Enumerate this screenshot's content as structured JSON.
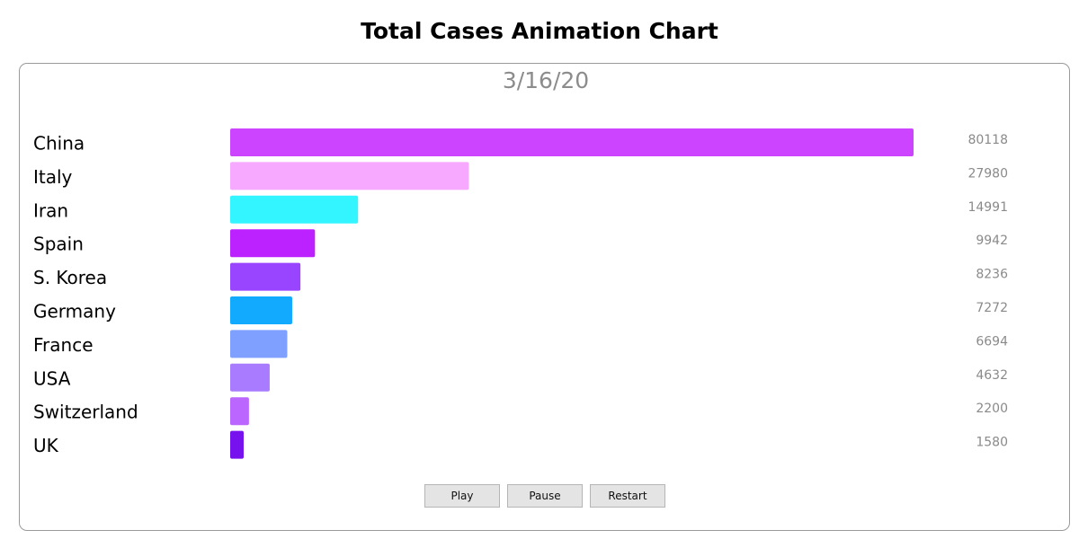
{
  "page": {
    "title": "Total Cases Animation Chart"
  },
  "chart_data": {
    "type": "bar",
    "orientation": "horizontal",
    "date": "3/16/20",
    "categories": [
      "China",
      "Italy",
      "Iran",
      "Spain",
      "S. Korea",
      "Germany",
      "France",
      "USA",
      "Switzerland",
      "UK"
    ],
    "values": [
      80118,
      27980,
      14991,
      9942,
      8236,
      7272,
      6694,
      4632,
      2200,
      1580
    ],
    "colors": [
      "#cc44ff",
      "#f7a8ff",
      "#33f5ff",
      "#bb22ff",
      "#9944ff",
      "#11aaff",
      "#7fa0ff",
      "#a97bff",
      "#bb66ff",
      "#7711ee"
    ],
    "value_labels": [
      "80118",
      "27980",
      "14991",
      "9942",
      "8236",
      "7272",
      "6694",
      "4632",
      "2200",
      "1580"
    ],
    "xlim": [
      0,
      80118
    ],
    "grid": false,
    "legend": "none"
  },
  "controls": {
    "play_label": "Play",
    "pause_label": "Pause",
    "restart_label": "Restart"
  }
}
